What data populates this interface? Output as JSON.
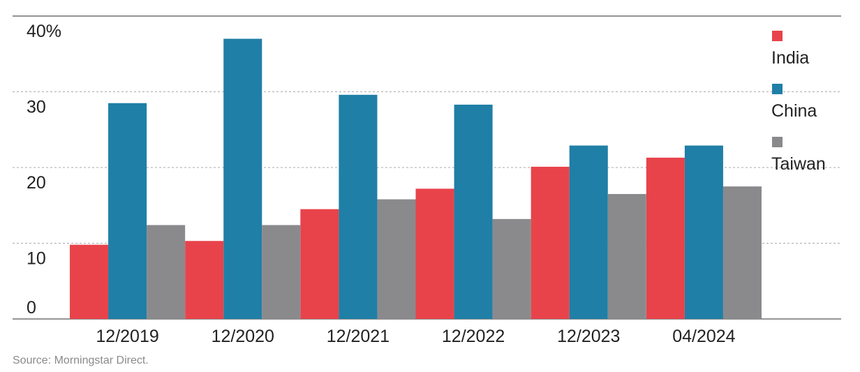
{
  "chart_data": {
    "type": "bar",
    "categories": [
      "12/2019",
      "12/2020",
      "12/2021",
      "12/2022",
      "12/2023",
      "04/2024"
    ],
    "series": [
      {
        "name": "India",
        "color": "#e8434b",
        "values": [
          9.8,
          10.3,
          14.5,
          17.2,
          20.1,
          21.3
        ]
      },
      {
        "name": "China",
        "color": "#1f7fa6",
        "values": [
          28.5,
          37.0,
          29.6,
          28.3,
          22.9,
          22.9
        ]
      },
      {
        "name": "Taiwan",
        "color": "#8a8a8d",
        "values": [
          12.4,
          12.4,
          15.8,
          13.2,
          16.5,
          17.5
        ]
      }
    ],
    "ylim": [
      0,
      40
    ],
    "yticks": [
      0,
      10,
      20,
      30,
      40
    ],
    "ytick_labels": [
      "0",
      "10",
      "20",
      "30",
      "40%"
    ],
    "grid": true,
    "legend_position": "right"
  },
  "source": "Source: Morningstar Direct."
}
